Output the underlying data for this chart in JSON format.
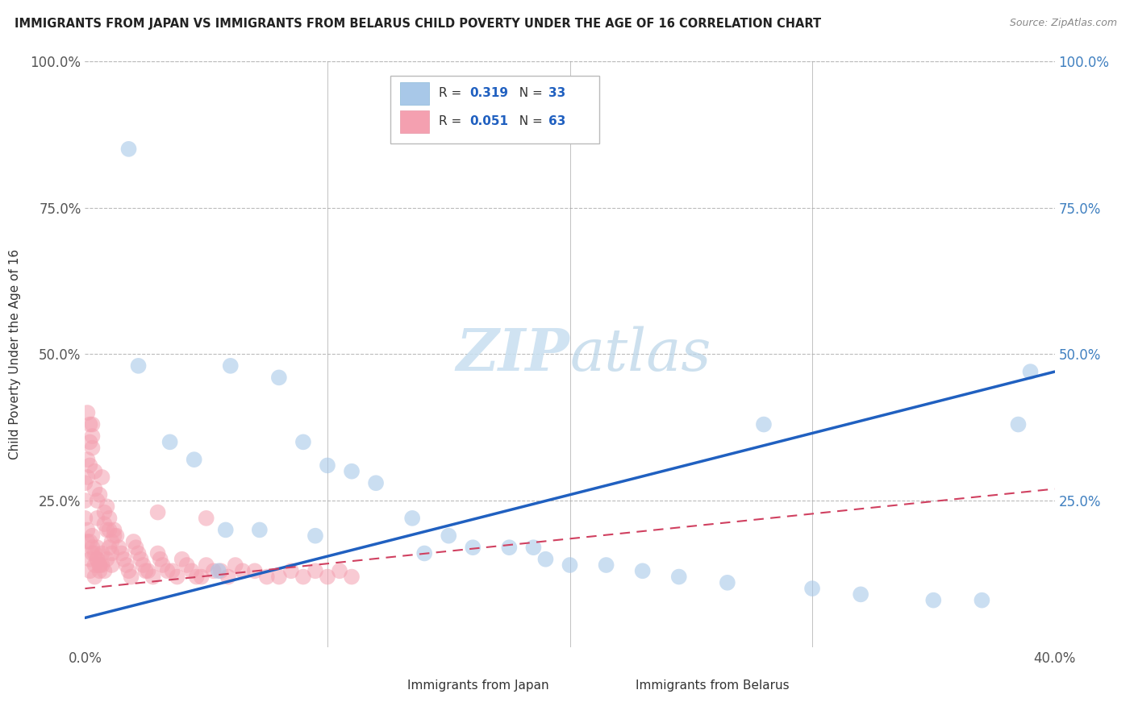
{
  "title": "IMMIGRANTS FROM JAPAN VS IMMIGRANTS FROM BELARUS CHILD POVERTY UNDER THE AGE OF 16 CORRELATION CHART",
  "source": "Source: ZipAtlas.com",
  "ylabel": "Child Poverty Under the Age of 16",
  "xlim": [
    0.0,
    0.4
  ],
  "ylim": [
    0.0,
    1.0
  ],
  "xticks": [
    0.0,
    0.4
  ],
  "xticklabels": [
    "0.0%",
    "40.0%"
  ],
  "yticks": [
    0.0,
    0.25,
    0.5,
    0.75,
    1.0
  ],
  "yticklabels_left": [
    "",
    "25.0%",
    "50.0%",
    "75.0%",
    "100.0%"
  ],
  "yticklabels_right": [
    "",
    "25.0%",
    "50.0%",
    "75.0%",
    "100.0%"
  ],
  "japan_R": 0.319,
  "japan_N": 33,
  "belarus_R": 0.051,
  "belarus_N": 63,
  "japan_color": "#a8c8e8",
  "belarus_color": "#f4a0b0",
  "japan_line_color": "#2060c0",
  "belarus_line_color": "#d04060",
  "legend_text_color": "#2060c0",
  "background_color": "#ffffff",
  "grid_color": "#bbbbbb",
  "watermark_color": "#c8dff0",
  "japan_x": [
    0.018,
    0.022,
    0.06,
    0.08,
    0.035,
    0.045,
    0.09,
    0.1,
    0.11,
    0.12,
    0.135,
    0.15,
    0.16,
    0.175,
    0.185,
    0.2,
    0.215,
    0.23,
    0.245,
    0.265,
    0.28,
    0.3,
    0.32,
    0.35,
    0.37,
    0.385,
    0.058,
    0.072,
    0.095,
    0.14,
    0.19,
    0.055,
    0.39
  ],
  "japan_y": [
    0.85,
    0.48,
    0.48,
    0.46,
    0.35,
    0.32,
    0.35,
    0.31,
    0.3,
    0.28,
    0.22,
    0.19,
    0.17,
    0.17,
    0.17,
    0.14,
    0.14,
    0.13,
    0.12,
    0.11,
    0.38,
    0.1,
    0.09,
    0.08,
    0.08,
    0.38,
    0.2,
    0.2,
    0.19,
    0.16,
    0.15,
    0.13,
    0.47
  ],
  "belarus_x": [
    0.001,
    0.002,
    0.002,
    0.003,
    0.003,
    0.004,
    0.004,
    0.005,
    0.005,
    0.006,
    0.006,
    0.007,
    0.007,
    0.008,
    0.009,
    0.01,
    0.01,
    0.011,
    0.011,
    0.012,
    0.013,
    0.014,
    0.015,
    0.016,
    0.017,
    0.018,
    0.019,
    0.02,
    0.021,
    0.022,
    0.023,
    0.024,
    0.025,
    0.026,
    0.028,
    0.03,
    0.031,
    0.032,
    0.034,
    0.036,
    0.038,
    0.04,
    0.042,
    0.044,
    0.046,
    0.048,
    0.05,
    0.053,
    0.056,
    0.059,
    0.062,
    0.065,
    0.07,
    0.075,
    0.08,
    0.085,
    0.09,
    0.095,
    0.1,
    0.105,
    0.11,
    0.05,
    0.03
  ],
  "belarus_y": [
    0.18,
    0.15,
    0.13,
    0.19,
    0.16,
    0.14,
    0.12,
    0.17,
    0.15,
    0.14,
    0.13,
    0.16,
    0.14,
    0.13,
    0.15,
    0.2,
    0.17,
    0.16,
    0.14,
    0.2,
    0.19,
    0.17,
    0.16,
    0.15,
    0.14,
    0.13,
    0.12,
    0.18,
    0.17,
    0.16,
    0.15,
    0.14,
    0.13,
    0.13,
    0.12,
    0.16,
    0.15,
    0.14,
    0.13,
    0.13,
    0.12,
    0.15,
    0.14,
    0.13,
    0.12,
    0.12,
    0.14,
    0.13,
    0.13,
    0.12,
    0.14,
    0.13,
    0.13,
    0.12,
    0.12,
    0.13,
    0.12,
    0.13,
    0.12,
    0.13,
    0.12,
    0.22,
    0.23
  ],
  "belarus_extra_x": [
    0.0,
    0.0,
    0.001,
    0.001,
    0.002,
    0.002,
    0.003,
    0.003,
    0.004,
    0.004,
    0.005,
    0.005,
    0.006,
    0.007,
    0.008,
    0.008,
    0.009,
    0.009,
    0.01,
    0.011,
    0.012,
    0.001,
    0.002,
    0.003,
    0.0,
    0.001,
    0.002,
    0.003,
    0.004,
    0.005,
    0.006
  ],
  "belarus_extra_y": [
    0.28,
    0.25,
    0.32,
    0.29,
    0.35,
    0.31,
    0.38,
    0.34,
    0.3,
    0.27,
    0.25,
    0.22,
    0.26,
    0.29,
    0.23,
    0.21,
    0.24,
    0.2,
    0.22,
    0.18,
    0.19,
    0.4,
    0.38,
    0.36,
    0.22,
    0.2,
    0.18,
    0.17,
    0.16,
    0.15,
    0.14
  ]
}
